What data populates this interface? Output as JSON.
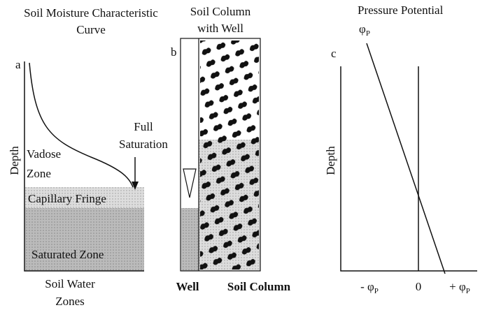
{
  "panel_a": {
    "title": [
      "Soil Moisture Characteristic",
      "Curve"
    ],
    "letter": "a",
    "axis_label": "Depth",
    "zones": {
      "vadose": [
        "Vadose",
        "Zone"
      ],
      "full_saturation": [
        "Full",
        "Saturation"
      ],
      "capillary_fringe": "Capillary Fringe",
      "saturated": "Saturated Zone"
    },
    "caption": [
      "Soil Water",
      "Zones"
    ]
  },
  "panel_b": {
    "title": [
      "Soil Column",
      "with Well"
    ],
    "letter": "b",
    "well_label": "Well",
    "column_label": "Soil Column"
  },
  "panel_c": {
    "title": "Pressure Potential",
    "top_label": {
      "symbol": "φ",
      "subscript": "P"
    },
    "letter": "c",
    "axis_label": "Depth",
    "x_labels": [
      {
        "prefix": "- φ",
        "subscript": "P"
      },
      {
        "prefix": "0"
      },
      {
        "prefix": "+ φ",
        "subscript": "P"
      }
    ]
  }
}
